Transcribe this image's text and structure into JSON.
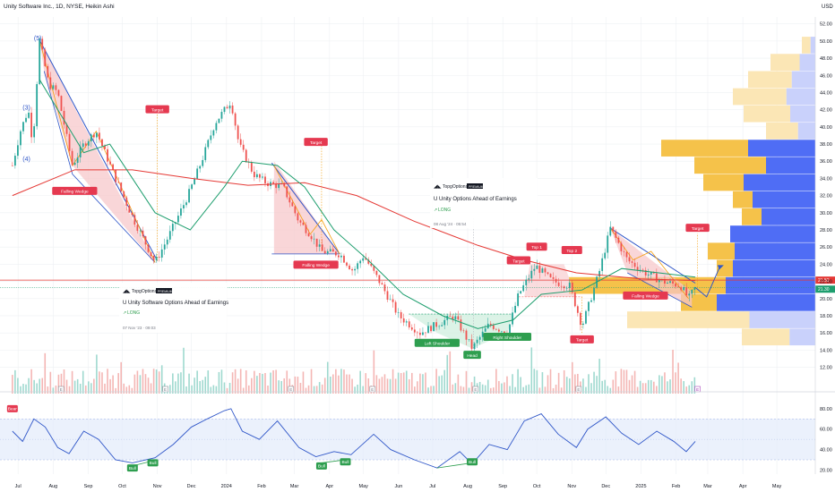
{
  "header": {
    "symbol_line": "Unity Software Inc., 1D, NYSE, Heikin Ashi",
    "currency": "USD"
  },
  "colors": {
    "up": "#26a69a",
    "down": "#ef5350",
    "ema_green": "#1e9e6e",
    "ma_red": "#e53935",
    "rsi": "#2f56c8",
    "wedge_blue": "#2f56c8",
    "wedge_fill": "#f7c4c8",
    "orange": "#f59e0b",
    "vp_yellow": "#f5c24a",
    "vp_blue": "#4f6df5",
    "target_red": "#e53950",
    "label_green": "#2e9e4f"
  },
  "chart_data": [
    {
      "type": "candlestick",
      "subtype": "Heikin Ashi",
      "x_ticks": [
        "Jul",
        "Aug",
        "Sep",
        "Oct",
        "Nov",
        "Dec",
        "2024",
        "Feb",
        "Mar",
        "Apr",
        "May",
        "Jun",
        "Jul",
        "Aug",
        "Sep",
        "Oct",
        "Nov",
        "Dec",
        "2025",
        "Feb",
        "Mar",
        "Apr",
        "May"
      ],
      "y_ticks": [
        "52.00",
        "50.00",
        "48.00",
        "46.00",
        "44.00",
        "42.00",
        "40.00",
        "38.00",
        "36.00",
        "34.00",
        "32.00",
        "30.00",
        "28.00",
        "26.00",
        "24.00",
        "22.00",
        "20.00",
        "18.00",
        "16.00",
        "14.00",
        "12.00"
      ],
      "ylim": [
        10.6,
        52.8
      ],
      "key_prices": [
        {
          "label": "(3)",
          "date": "2023-07-10",
          "price": 42.0
        },
        {
          "label": "(5)",
          "date": "2023-07-20",
          "price": 50.1
        },
        {
          "label": "(4)",
          "date": "2023-07-10",
          "price": 36.0
        },
        {
          "label": "",
          "date": "2023-10-30",
          "price": 24.2
        },
        {
          "label": "",
          "date": "2024-01-05",
          "price": 43.0
        },
        {
          "label": "",
          "date": "2024-04-10",
          "price": 25.2
        },
        {
          "label": "Head",
          "date": "2024-08-05",
          "price": 14.2
        },
        {
          "label": "",
          "date": "2024-12-05",
          "price": 28.2
        },
        {
          "label": "",
          "date": "2025-02-12",
          "price": 20.0
        }
      ],
      "price_path": [
        [
          "2023-06-26",
          35.5
        ],
        [
          "2023-07-03",
          39.5
        ],
        [
          "2023-07-10",
          42.0
        ],
        [
          "2023-07-14",
          38.0
        ],
        [
          "2023-07-20",
          50.1
        ],
        [
          "2023-07-28",
          45.0
        ],
        [
          "2023-08-05",
          44.0
        ],
        [
          "2023-08-18",
          35.5
        ],
        [
          "2023-08-28",
          38.0
        ],
        [
          "2023-09-08",
          39.5
        ],
        [
          "2023-09-25",
          34.0
        ],
        [
          "2023-10-10",
          29.5
        ],
        [
          "2023-10-30",
          24.2
        ],
        [
          "2023-11-10",
          27.0
        ],
        [
          "2023-11-28",
          32.0
        ],
        [
          "2023-12-10",
          36.0
        ],
        [
          "2023-12-22",
          40.5
        ],
        [
          "2024-01-05",
          43.0
        ],
        [
          "2024-01-12",
          38.0
        ],
        [
          "2024-01-25",
          34.5
        ],
        [
          "2024-02-05",
          33.5
        ],
        [
          "2024-02-20",
          33.0
        ],
        [
          "2024-03-05",
          29.0
        ],
        [
          "2024-03-15",
          27.5
        ],
        [
          "2024-03-25",
          25.5
        ],
        [
          "2024-04-10",
          25.2
        ],
        [
          "2024-04-22",
          23.2
        ],
        [
          "2024-05-01",
          25.0
        ],
        [
          "2024-05-15",
          22.0
        ],
        [
          "2024-06-01",
          18.0
        ],
        [
          "2024-06-20",
          16.0
        ],
        [
          "2024-07-05",
          17.0
        ],
        [
          "2024-07-20",
          18.0
        ],
        [
          "2024-08-05",
          14.2
        ],
        [
          "2024-08-20",
          17.0
        ],
        [
          "2024-09-05",
          16.0
        ],
        [
          "2024-09-15",
          20.5
        ],
        [
          "2024-09-30",
          23.8
        ],
        [
          "2024-10-15",
          22.0
        ],
        [
          "2024-10-30",
          21.5
        ],
        [
          "2024-11-10",
          16.8
        ],
        [
          "2024-11-25",
          23.0
        ],
        [
          "2024-12-05",
          28.2
        ],
        [
          "2024-12-20",
          24.5
        ],
        [
          "2025-01-05",
          23.0
        ],
        [
          "2025-01-20",
          22.0
        ],
        [
          "2025-02-05",
          21.5
        ],
        [
          "2025-02-12",
          20.0
        ],
        [
          "2025-02-18",
          21.3
        ]
      ],
      "ema_path": [
        [
          "2023-07-20",
          45.5
        ],
        [
          "2023-08-28",
          37.0
        ],
        [
          "2023-09-20",
          38.0
        ],
        [
          "2023-10-30",
          30.0
        ],
        [
          "2023-11-30",
          28.0
        ],
        [
          "2023-12-30",
          33.0
        ],
        [
          "2024-01-15",
          36.0
        ],
        [
          "2024-02-15",
          35.5
        ],
        [
          "2024-03-10",
          33.0
        ],
        [
          "2024-04-05",
          28.0
        ],
        [
          "2024-05-05",
          24.5
        ],
        [
          "2024-06-05",
          20.5
        ],
        [
          "2024-07-10",
          18.0
        ],
        [
          "2024-08-10",
          16.5
        ],
        [
          "2024-09-10",
          17.5
        ],
        [
          "2024-10-05",
          20.5
        ],
        [
          "2024-11-10",
          21.0
        ],
        [
          "2024-12-15",
          23.5
        ],
        [
          "2025-02-18",
          22.5
        ]
      ],
      "ma_path": [
        [
          "2023-06-26",
          32.0
        ],
        [
          "2023-08-20",
          35.0
        ],
        [
          "2023-10-10",
          35.0
        ],
        [
          "2023-12-01",
          34.0
        ],
        [
          "2024-01-20",
          33.2
        ],
        [
          "2024-03-10",
          33.5
        ],
        [
          "2024-04-25",
          32.0
        ],
        [
          "2024-06-15",
          29.0
        ],
        [
          "2024-08-10",
          26.2
        ],
        [
          "2024-09-20",
          24.5
        ],
        [
          "2024-11-05",
          23.0
        ],
        [
          "2025-01-01",
          22.3
        ],
        [
          "2025-02-18",
          22.1
        ]
      ],
      "current_price_lines": [
        "21.53",
        "21.30"
      ],
      "annotations": [
        {
          "text": "Falling Wedge",
          "date": "2023-08-20",
          "price": 32.5
        },
        {
          "text": "Target",
          "date": "2023-11-01",
          "price": 42.0
        },
        {
          "text": "Target",
          "date": "2024-03-20",
          "price": 38.2
        },
        {
          "text": "Falling Wedge",
          "date": "2024-03-20",
          "price": 23.9
        },
        {
          "text": "Top 1",
          "date": "2024-10-01",
          "price": 26.0
        },
        {
          "text": "Top 2",
          "date": "2024-11-01",
          "price": 25.6
        },
        {
          "text": "Target",
          "date": "2024-09-15",
          "price": 24.4
        },
        {
          "text": "Target",
          "date": "2024-11-10",
          "price": 15.2
        },
        {
          "text": "Target",
          "date": "2025-02-20",
          "price": 28.2
        },
        {
          "text": "Falling Wedge",
          "date": "2025-01-05",
          "price": 20.3
        },
        {
          "text": "Left Shoulder",
          "date": "2024-07-05",
          "price": 14.8
        },
        {
          "text": "Head",
          "date": "2024-08-05",
          "price": 13.4
        },
        {
          "text": "Right Shoulder",
          "date": "2024-09-05",
          "price": 15.5
        }
      ]
    },
    {
      "type": "line",
      "name": "RSI",
      "y_ticks": [
        "80.00",
        "60.00",
        "40.00",
        "20.00"
      ],
      "ylim": [
        16,
        86
      ],
      "band": [
        30,
        70
      ],
      "path": [
        [
          "2023-06-26",
          58
        ],
        [
          "2023-07-05",
          48
        ],
        [
          "2023-07-15",
          70
        ],
        [
          "2023-07-25",
          62
        ],
        [
          "2023-08-05",
          42
        ],
        [
          "2023-08-15",
          36
        ],
        [
          "2023-08-28",
          58
        ],
        [
          "2023-09-10",
          50
        ],
        [
          "2023-09-25",
          30
        ],
        [
          "2023-10-10",
          27
        ],
        [
          "2023-10-30",
          32
        ],
        [
          "2023-11-15",
          45
        ],
        [
          "2023-12-01",
          62
        ],
        [
          "2023-12-15",
          70
        ],
        [
          "2023-12-30",
          78
        ],
        [
          "2024-01-05",
          80
        ],
        [
          "2024-01-15",
          58
        ],
        [
          "2024-01-30",
          50
        ],
        [
          "2024-02-15",
          68
        ],
        [
          "2024-03-05",
          42
        ],
        [
          "2024-03-20",
          33
        ],
        [
          "2024-04-05",
          38
        ],
        [
          "2024-04-20",
          35
        ],
        [
          "2024-05-10",
          55
        ],
        [
          "2024-05-25",
          40
        ],
        [
          "2024-06-15",
          30
        ],
        [
          "2024-07-05",
          22
        ],
        [
          "2024-07-25",
          38
        ],
        [
          "2024-08-05",
          26
        ],
        [
          "2024-08-20",
          45
        ],
        [
          "2024-09-05",
          40
        ],
        [
          "2024-09-20",
          68
        ],
        [
          "2024-10-05",
          75
        ],
        [
          "2024-10-20",
          55
        ],
        [
          "2024-11-05",
          42
        ],
        [
          "2024-11-15",
          60
        ],
        [
          "2024-12-01",
          72
        ],
        [
          "2024-12-15",
          56
        ],
        [
          "2024-12-30",
          45
        ],
        [
          "2025-01-15",
          58
        ],
        [
          "2025-01-30",
          48
        ],
        [
          "2025-02-10",
          38
        ],
        [
          "2025-02-18",
          48
        ]
      ],
      "annotations": [
        {
          "text": "Bear",
          "date": "2023-06-26",
          "price": 80
        },
        {
          "text": "Bull",
          "date": "2023-10-10",
          "price": 22
        },
        {
          "text": "Bull",
          "date": "2023-10-28",
          "price": 27
        },
        {
          "text": "Bull",
          "date": "2024-03-25",
          "price": 24
        },
        {
          "text": "Bull",
          "date": "2024-04-15",
          "price": 28
        },
        {
          "text": "Bull",
          "date": "2024-08-05",
          "price": 28
        }
      ]
    }
  ],
  "idea_cards": [
    {
      "brand": "TopgOptions",
      "badge": "PREMIUM",
      "title": "U Unity Software Options Ahead of Earnings",
      "tag": "LONG",
      "date": "07 Nov '23 · 09:03"
    },
    {
      "brand": "TopgOptions",
      "badge": "PREMIUM",
      "title": "U Unity Options Ahead of Earnings",
      "tag": "LONG",
      "date": "08 Aug '24 · 05:54"
    }
  ],
  "events_marker": "E"
}
